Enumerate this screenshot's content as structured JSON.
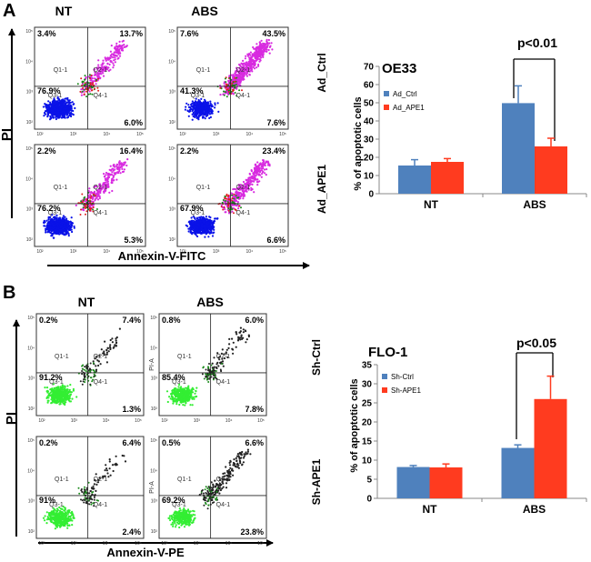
{
  "panels": [
    {
      "letter": "A",
      "col_headers": [
        "NT",
        "ABS"
      ],
      "row_labels": [
        "Ad_Ctrl",
        "Ad_APE1"
      ],
      "x_label": "Annexin-V-FITC",
      "y_label": "PI",
      "gate_labels": [
        "Q1-1",
        "Q2-1",
        "Q3-1",
        "Q4-1"
      ],
      "plots": [
        {
          "ul": "3.4%",
          "ur": "13.7%",
          "ll": "76.9%",
          "lr": "6.0%"
        },
        {
          "ul": "7.6%",
          "ur": "43.5%",
          "ll": "41.3%",
          "lr": "7.6%"
        },
        {
          "ul": "2.2%",
          "ur": "16.4%",
          "ll": "76.2%",
          "lr": "5.3%"
        },
        {
          "ul": "2.2%",
          "ur": "23.4%",
          "ll": "67.9%",
          "lr": "6.6%"
        }
      ]
    },
    {
      "letter": "B",
      "col_headers": [
        "NT",
        "ABS"
      ],
      "row_labels": [
        "Sh-Ctrl",
        "Sh-APE1"
      ],
      "x_label": "Annexin-V-PE",
      "y_label": "PI",
      "gate_labels": [
        "Q1-1",
        "Q2-1",
        "Q3-1",
        "Q4-1"
      ],
      "y_axis_name": "PI-A",
      "plots": [
        {
          "ul": "0.2%",
          "ur": "7.4%",
          "ll": "91.2%",
          "lr": "1.3%"
        },
        {
          "ul": "0.8%",
          "ur": "6.0%",
          "ll": "85.4%",
          "lr": "7.8%"
        },
        {
          "ul": "0.2%",
          "ur": "6.4%",
          "ll": "91%",
          "lr": "2.4%"
        },
        {
          "ul": "0.5%",
          "ur": "6.6%",
          "ll": "69.2%",
          "lr": "23.8%"
        }
      ]
    }
  ],
  "axis_ticks": [
    "10²",
    "10³",
    "10⁴",
    "10⁵"
  ],
  "colors": {
    "series1": "#4f81bd",
    "series2": "#ff3b1f",
    "dots_a_live": "#0a12e8",
    "dots_a_apop": "#d82be0",
    "dots_b_live": "#33ee33",
    "dots_b_apop": "#222222"
  },
  "chart_data": [
    {
      "type": "bar",
      "title": "OE33",
      "ylabel": "% of apoptotic cells",
      "xlabel": "",
      "categories": [
        "NT",
        "ABS"
      ],
      "ylim": [
        0,
        70
      ],
      "yticks": [
        0,
        10,
        20,
        30,
        40,
        50,
        60,
        70
      ],
      "series": [
        {
          "name": "Ad_Ctrl",
          "values": [
            15.5,
            49.8
          ],
          "errors": [
            3.2,
            9.5
          ]
        },
        {
          "name": "Ad_APE1",
          "values": [
            17.5,
            26.0
          ],
          "errors": [
            1.8,
            4.5
          ]
        }
      ],
      "annotation": {
        "text": "p<0.01",
        "category": "ABS"
      },
      "legend": "top-left",
      "grid": false
    },
    {
      "type": "bar",
      "title": "FLO-1",
      "ylabel": "% of apoptotic cells",
      "xlabel": "",
      "categories": [
        "NT",
        "ABS"
      ],
      "ylim": [
        0,
        35
      ],
      "yticks": [
        0,
        5,
        10,
        15,
        20,
        25,
        30,
        35
      ],
      "series": [
        {
          "name": "Sh-Ctrl",
          "values": [
            8.2,
            13.2
          ],
          "errors": [
            0.4,
            0.8
          ]
        },
        {
          "name": "Sh-APE1",
          "values": [
            8.1,
            26.0
          ],
          "errors": [
            0.9,
            6.0
          ]
        }
      ],
      "annotation": {
        "text": "p<0.05",
        "category": "ABS"
      },
      "legend": "top-left",
      "grid": false
    }
  ]
}
